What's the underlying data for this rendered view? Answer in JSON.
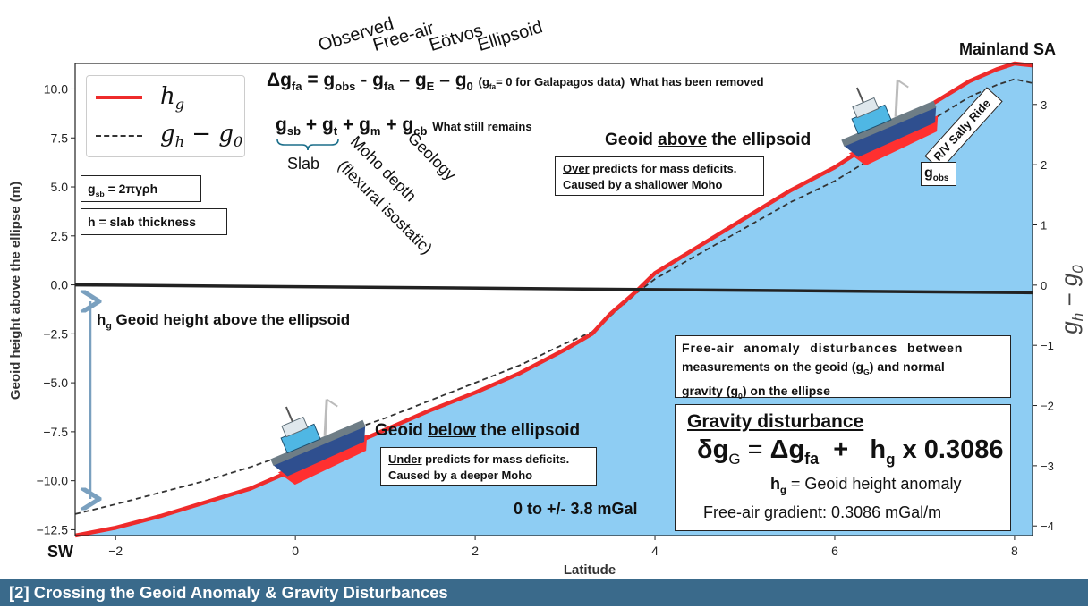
{
  "colors": {
    "ocean_fill": "#8ecdf3",
    "hg_line": "#ee2b2b",
    "ghg0_line": "#333333",
    "ellipsoid_line": "#222222",
    "title_bar": "#3a6a8b",
    "arrow": "#7aa0bf",
    "ship_hull": "#2f4f8f",
    "ship_deck": "#6e7d86",
    "ship_cabin": "#4fb7e4",
    "ship_wake": "#ff3030"
  },
  "chart_data": {
    "type": "line",
    "xlabel": "Latitude",
    "ylabel": "Geoid height above the ellipse (m)",
    "y2label": "g_h − g_0",
    "xlim": [
      -2.45,
      8.2
    ],
    "ylim": [
      -12.8,
      11.3
    ],
    "y2lim": [
      -4.16,
      3.68
    ],
    "x_ticks": [
      "−2",
      "0",
      "2",
      "4",
      "6",
      "8"
    ],
    "x_tick_values": [
      -2,
      0,
      2,
      4,
      6,
      8
    ],
    "y_ticks": [
      "−12.5",
      "−10.0",
      "−7.5",
      "−5.0",
      "−2.5",
      "0.0",
      "2.5",
      "5.0",
      "7.5",
      "10.0"
    ],
    "y_tick_values": [
      -12.5,
      -10,
      -7.5,
      -5,
      -2.5,
      0,
      2.5,
      5,
      7.5,
      10
    ],
    "y2_ticks": [
      "−4",
      "−3",
      "−2",
      "−1",
      "0",
      "1",
      "2",
      "3"
    ],
    "y2_tick_values": [
      -4,
      -3,
      -2,
      -1,
      0,
      1,
      2,
      3
    ],
    "grid": false,
    "legend_placement": "top-left",
    "series": [
      {
        "name": "h_g",
        "style": "solid-red-thick",
        "x": [
          -2.45,
          -2.0,
          -1.5,
          -1.0,
          -0.5,
          0.0,
          0.5,
          1.0,
          1.5,
          2.0,
          2.5,
          3.0,
          3.3,
          3.5,
          3.8,
          4.0,
          4.5,
          5.0,
          5.5,
          6.0,
          6.5,
          7.0,
          7.5,
          7.8,
          8.0,
          8.2
        ],
        "y": [
          -12.8,
          -12.4,
          -11.8,
          -11.1,
          -10.4,
          -9.4,
          -8.4,
          -7.4,
          -6.4,
          -5.5,
          -4.5,
          -3.3,
          -2.5,
          -1.5,
          -0.3,
          0.6,
          2.0,
          3.4,
          4.8,
          6.0,
          7.5,
          9.0,
          10.4,
          11.0,
          11.3,
          11.2
        ]
      },
      {
        "name": "g_h − g_0",
        "style": "dashed-dark",
        "x": [
          -2.45,
          -2.0,
          -1.5,
          -1.0,
          -0.5,
          0.0,
          0.5,
          1.0,
          1.5,
          2.0,
          2.5,
          3.0,
          3.3,
          3.5,
          3.8,
          4.0,
          4.5,
          5.0,
          5.5,
          6.0,
          6.5,
          7.0,
          7.5,
          7.8,
          8.0,
          8.2
        ],
        "y": [
          -11.7,
          -11.2,
          -10.6,
          -10.0,
          -9.3,
          -8.5,
          -7.6,
          -6.8,
          -5.9,
          -5.0,
          -4.1,
          -3.0,
          -2.4,
          -1.6,
          -0.4,
          0.3,
          1.6,
          2.9,
          4.2,
          5.3,
          6.7,
          8.2,
          9.6,
          10.2,
          10.5,
          10.3
        ]
      },
      {
        "name": "ellipsoid",
        "style": "solid-black",
        "x": [
          -2.45,
          8.2
        ],
        "y": [
          0.0,
          -0.4
        ]
      }
    ]
  },
  "legend": {
    "hg": "h",
    "hg_sub": "g",
    "ghg0": "g",
    "ghg0_sub1": "h",
    "ghg0_mid": " − g",
    "ghg0_sub2": "0"
  },
  "labels": {
    "mainland": "Mainland SA",
    "sw": "SW",
    "xaxis": "Latitude",
    "yaxis": "Geoid height above the ellipse (m)",
    "y2_main": "g",
    "y2_sub_h": "h",
    "y2_mid": " − g",
    "y2_sub_0": "0"
  },
  "equation_top": {
    "delta": "Δg",
    "fa": "fa",
    "eq": " = g",
    "obs": "obs",
    "minus1": " - g",
    "fa2": "fa",
    "minus2": " – g",
    "E": "E",
    "minus3": " – g",
    "zero": "0",
    "note_open": " (g",
    "note_fa": "fa",
    "note_rest": "= 0 for Galapagos data)",
    "removed": "What has been removed"
  },
  "rotated_terms": {
    "observed": "Observed",
    "free_air": "Free-air",
    "eotvos": "Eötvos",
    "ellipsoid": "Ellipsoid",
    "moho": "Moho depth",
    "flexural": "(flexural isostatic)",
    "geology": "Geology"
  },
  "equation_remain": {
    "g1": "g",
    "sb": "sb",
    "plus1": " + g",
    "t": "t",
    "plus2": " + g",
    "m": "m",
    "plus3": " + g",
    "cb": "cb",
    "remains": "What still remains",
    "slab": "Slab"
  },
  "slab_box": {
    "g": "g",
    "sb": "sb",
    "eq": " = 2πγρh"
  },
  "thickness_box": "h = slab thickness",
  "hg_label": {
    "h": "h",
    "g": "g",
    "rest": " Geoid height above the ellipsoid"
  },
  "geoid_above": {
    "pre": "Geoid ",
    "under": "above",
    "post": " the ellipsoid"
  },
  "over_box": {
    "line1_u": "Over",
    "line1": " predicts for mass deficits.",
    "line2": "Caused by a shallower Moho"
  },
  "geoid_below": {
    "pre": "Geoid ",
    "under": "below",
    "post": " the ellipsoid"
  },
  "under_box": {
    "line1_u": "Under",
    "line1": " predicts for mass deficits.",
    "line2": "Caused by a deeper Moho"
  },
  "range_text": "0 to +/- 3.8 mGal",
  "ship_name": "R/V Sally Ride",
  "gobs_box": {
    "g": "g",
    "obs": "obs"
  },
  "free_air_box": {
    "line1": "Free-air anomaly disturbances between",
    "line2a": "measurements on the geoid (g",
    "line2sub": "G",
    "line2b": ") and normal",
    "line3a": "gravity (g",
    "line3sub": "0",
    "line3b": ") on the ellipse"
  },
  "gravity_box": {
    "title": "Gravity disturbance",
    "delta": "δg",
    "G": "G",
    "eq": " = ",
    "dg": "Δg",
    "fa": "fa",
    "plus": "  +   h",
    "g": "g",
    "times": " x 0.3086",
    "hg_h": "h",
    "hg_g": "g",
    "hg_def": " = Geoid height anomaly",
    "gradient": "Free-air gradient: 0.3086 mGal/m"
  },
  "footer": "[2] Crossing the Geoid Anomaly & Gravity Disturbances"
}
